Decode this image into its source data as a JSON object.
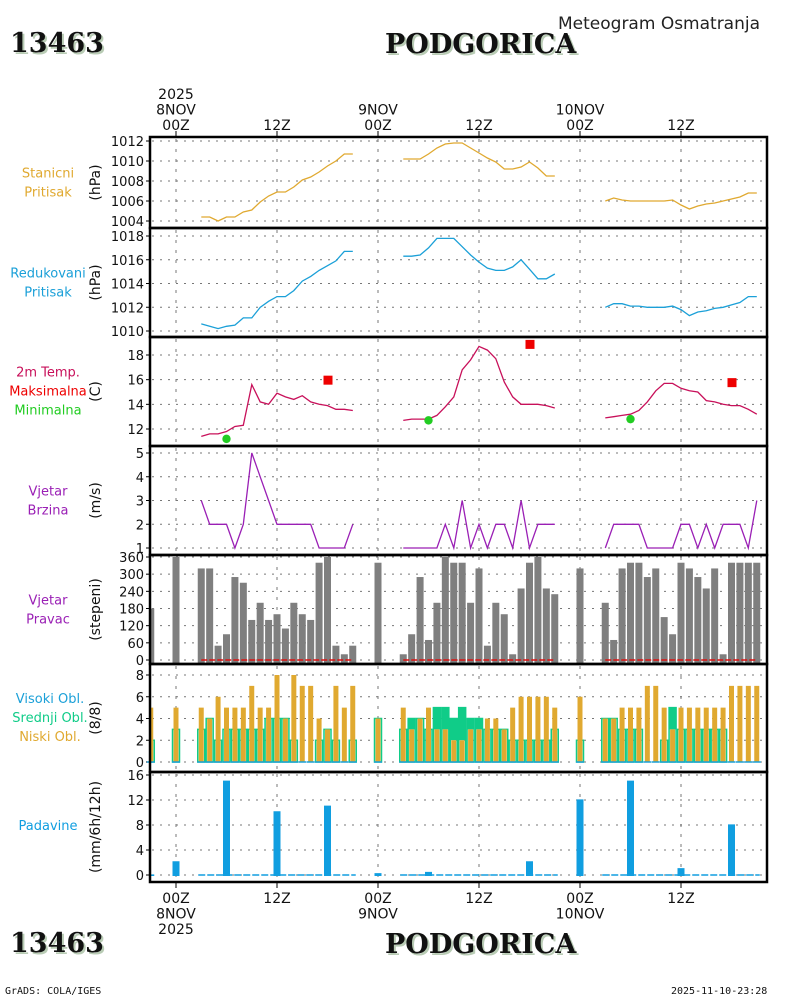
{
  "header": {
    "station_id": "13463",
    "station_name": "PODGORICA",
    "subtitle": "Meteogram Osmatranja"
  },
  "footer": {
    "station_id": "13463",
    "station_name": "PODGORICA",
    "credit": "GrADS: COLA/IGES",
    "timestamp": "2025-11-10-23:28"
  },
  "top_axis": [
    {
      "lines": [
        "2025",
        "8NOV",
        "00Z"
      ],
      "hour": 0
    },
    {
      "lines": [
        "12Z"
      ],
      "hour": 12
    },
    {
      "lines": [
        "9NOV",
        "00Z"
      ],
      "hour": 24
    },
    {
      "lines": [
        "12Z"
      ],
      "hour": 36
    },
    {
      "lines": [
        "10NOV",
        "00Z"
      ],
      "hour": 48
    },
    {
      "lines": [
        "12Z"
      ],
      "hour": 60
    }
  ],
  "bottom_axis": [
    {
      "lines": [
        "00Z",
        "8NOV",
        "2025"
      ],
      "hour": 0
    },
    {
      "lines": [
        "12Z"
      ],
      "hour": 12
    },
    {
      "lines": [
        "00Z",
        "9NOV"
      ],
      "hour": 24
    },
    {
      "lines": [
        "12Z"
      ],
      "hour": 36
    },
    {
      "lines": [
        "00Z",
        "10NOV"
      ],
      "hour": 48
    },
    {
      "lines": [
        "12Z"
      ],
      "hour": 60
    }
  ],
  "colors": {
    "station_pressure": "#e0a930",
    "reduced_pressure": "#1ba0d8",
    "temperature": "#c8105a",
    "tmax": "#ee0000",
    "tmin": "#22cc22",
    "wind_speed": "#9a1fb5",
    "wind_dir": "#7f7f7f",
    "calm_line": "#dd1111",
    "high_cloud": "#1ba0d8",
    "mid_cloud": "#10cc88",
    "low_cloud": "#e0a930",
    "precip": "#109ee0"
  },
  "chart_data": [
    {
      "type": "line",
      "id": "station_pressure",
      "label_lines": [
        "Stanicni",
        "Pritisak"
      ],
      "ylabel": "(hPa)",
      "ylim": [
        1004,
        1012
      ],
      "yticks": [
        1004,
        1006,
        1008,
        1010,
        1012
      ],
      "x_unit": "hours since 8NOV 00Z",
      "segments": [
        {
          "x": [
            3,
            4,
            5,
            6,
            7,
            8,
            9,
            10,
            11,
            12,
            13,
            14,
            15,
            16,
            17,
            18,
            19,
            20,
            21
          ],
          "y": [
            1004.4,
            1004.4,
            1004.0,
            1004.4,
            1004.4,
            1004.9,
            1005.1,
            1005.9,
            1006.5,
            1006.9,
            1006.9,
            1007.4,
            1008.1,
            1008.4,
            1008.9,
            1009.5,
            1010.0,
            1010.7,
            1010.7
          ]
        },
        {
          "x": [
            27,
            28,
            29,
            30,
            31,
            32,
            33,
            34,
            35,
            36,
            37,
            38,
            39,
            40,
            41,
            42,
            43,
            44,
            45
          ],
          "y": [
            1010.2,
            1010.2,
            1010.2,
            1010.7,
            1011.3,
            1011.7,
            1011.8,
            1011.8,
            1011.3,
            1010.8,
            1010.3,
            1009.9,
            1009.2,
            1009.2,
            1009.4,
            1009.9,
            1009.3,
            1008.5,
            1008.5
          ]
        },
        {
          "x": [
            51,
            52,
            53,
            54,
            55,
            56,
            57,
            58,
            59,
            60,
            61,
            62,
            63,
            64,
            65,
            66,
            67,
            68,
            69
          ],
          "y": [
            1006.0,
            1006.3,
            1006.1,
            1006.0,
            1006.0,
            1006.0,
            1006.0,
            1006.0,
            1006.1,
            1005.6,
            1005.2,
            1005.5,
            1005.7,
            1005.8,
            1006.0,
            1006.2,
            1006.4,
            1006.8,
            1006.8
          ]
        }
      ]
    },
    {
      "type": "line",
      "id": "reduced_pressure",
      "label_lines": [
        "Redukovani",
        "Pritisak"
      ],
      "ylabel": "(hPa)",
      "ylim": [
        1009.5,
        1018
      ],
      "yticks": [
        1010,
        1012,
        1014,
        1016,
        1018
      ],
      "segments": [
        {
          "x": [
            3,
            4,
            5,
            6,
            7,
            8,
            9,
            10,
            11,
            12,
            13,
            14,
            15,
            16,
            17,
            18,
            19,
            20,
            21
          ],
          "y": [
            1010.6,
            1010.4,
            1010.2,
            1010.4,
            1010.5,
            1011.1,
            1011.1,
            1012.0,
            1012.5,
            1012.9,
            1012.9,
            1013.4,
            1014.2,
            1014.6,
            1015.1,
            1015.5,
            1015.9,
            1016.7,
            1016.7
          ]
        },
        {
          "x": [
            27,
            28,
            29,
            30,
            31,
            32,
            33,
            34,
            35,
            36,
            37,
            38,
            39,
            40,
            41,
            42,
            43,
            44,
            45
          ],
          "y": [
            1016.3,
            1016.3,
            1016.4,
            1017.0,
            1017.8,
            1017.8,
            1017.8,
            1017.1,
            1016.4,
            1015.8,
            1015.3,
            1015.1,
            1015.1,
            1015.4,
            1016.0,
            1015.2,
            1014.4,
            1014.4,
            1014.8
          ]
        },
        {
          "x": [
            51,
            52,
            53,
            54,
            55,
            56,
            57,
            58,
            59,
            60,
            61,
            62,
            63,
            64,
            65,
            66,
            67,
            68,
            69
          ],
          "y": [
            1012.0,
            1012.3,
            1012.3,
            1012.1,
            1012.1,
            1012.0,
            1012.0,
            1012.0,
            1012.1,
            1011.8,
            1011.3,
            1011.6,
            1011.7,
            1011.9,
            1012.0,
            1012.2,
            1012.4,
            1012.9,
            1012.9
          ]
        }
      ]
    },
    {
      "type": "line",
      "id": "temperature",
      "label_lines": [
        "2m Temp.",
        "Maksimalna",
        "Minimalna"
      ],
      "ylabel": "(C)",
      "ylim": [
        11.3,
        19.5
      ],
      "yticks": [
        12,
        14,
        16,
        18
      ],
      "segments": [
        {
          "x": [
            3,
            4,
            5,
            6,
            7,
            8,
            9,
            10,
            11,
            12,
            13,
            14,
            15,
            16,
            17,
            18,
            19,
            20,
            21
          ],
          "y": [
            11.4,
            11.6,
            11.6,
            11.8,
            12.2,
            12.3,
            15.6,
            14.2,
            14.0,
            14.9,
            14.6,
            14.4,
            14.7,
            14.2,
            14.0,
            13.9,
            13.6,
            13.6,
            13.5
          ]
        },
        {
          "x": [
            27,
            28,
            29,
            30,
            31,
            32,
            33,
            34,
            35,
            36,
            37,
            38,
            39,
            40,
            41,
            42,
            43,
            44,
            45
          ],
          "y": [
            12.7,
            12.8,
            12.8,
            12.8,
            13.1,
            13.8,
            14.6,
            16.8,
            17.6,
            18.7,
            18.4,
            17.7,
            15.8,
            14.6,
            14.0,
            14.0,
            14.0,
            13.9,
            13.7
          ]
        },
        {
          "x": [
            51,
            52,
            53,
            54,
            55,
            56,
            57,
            58,
            59,
            60,
            61,
            62,
            63,
            64,
            65,
            66,
            67,
            68,
            69
          ],
          "y": [
            12.9,
            13.0,
            13.1,
            13.2,
            13.5,
            14.2,
            15.1,
            15.7,
            15.7,
            15.3,
            15.1,
            15.0,
            14.3,
            14.2,
            14.0,
            13.9,
            13.9,
            13.6,
            13.2
          ]
        }
      ],
      "tmax": [
        {
          "x": 18,
          "y": 16.0
        },
        {
          "x": 42,
          "y": 18.9
        },
        {
          "x": 66,
          "y": 15.8
        }
      ],
      "tmin": [
        {
          "x": 6,
          "y": 11.2
        },
        {
          "x": 30,
          "y": 12.7
        },
        {
          "x": 54,
          "y": 12.8
        }
      ]
    },
    {
      "type": "line",
      "id": "wind_speed",
      "label_lines": [
        "Vjetar",
        "Brzina"
      ],
      "ylabel": "(m/s)",
      "ylim": [
        0.9,
        5.3
      ],
      "yticks": [
        1,
        2,
        3,
        4,
        5
      ],
      "segments": [
        {
          "x": [
            3,
            4,
            5,
            6,
            7,
            8,
            9,
            10,
            11,
            12,
            13,
            14,
            15,
            16,
            17,
            18,
            19,
            20,
            21
          ],
          "y": [
            3,
            2,
            2,
            2,
            1,
            2,
            5,
            4,
            3,
            2,
            2,
            2,
            2,
            2,
            1,
            1,
            1,
            1,
            2
          ]
        },
        {
          "x": [
            27,
            28,
            29,
            30,
            31,
            32,
            33,
            34,
            35,
            36,
            37,
            38,
            39,
            40,
            41,
            42,
            43,
            44,
            45
          ],
          "y": [
            1,
            1,
            1,
            1,
            1,
            2,
            1,
            3,
            1,
            2,
            1,
            2,
            2,
            1,
            3,
            1,
            2,
            2,
            2
          ]
        },
        {
          "x": [
            51,
            52,
            53,
            54,
            55,
            56,
            57,
            58,
            59,
            60,
            61,
            62,
            63,
            64,
            65,
            66,
            67,
            68,
            69
          ],
          "y": [
            1,
            2,
            2,
            2,
            2,
            1,
            1,
            1,
            1,
            2,
            2,
            1,
            2,
            1,
            2,
            2,
            2,
            1,
            3
          ]
        }
      ]
    },
    {
      "type": "bar",
      "id": "wind_direction",
      "label_lines": [
        "Vjetar",
        "Pravac"
      ],
      "ylabel": "(stepeni)",
      "ylim": [
        0,
        360
      ],
      "yticks": [
        0,
        60,
        120,
        180,
        240,
        300,
        360
      ],
      "x": [
        -3,
        0,
        3,
        4,
        5,
        6,
        7,
        8,
        9,
        10,
        11,
        12,
        13,
        14,
        15,
        16,
        17,
        18,
        19,
        20,
        21,
        24,
        27,
        28,
        29,
        30,
        31,
        32,
        33,
        34,
        35,
        36,
        37,
        38,
        39,
        40,
        41,
        42,
        43,
        44,
        45,
        48,
        51,
        52,
        53,
        54,
        55,
        56,
        57,
        58,
        59,
        60,
        61,
        62,
        63,
        64,
        65,
        66,
        67,
        68,
        69
      ],
      "values": [
        180,
        360,
        320,
        320,
        50,
        90,
        290,
        270,
        140,
        200,
        140,
        160,
        110,
        200,
        160,
        140,
        340,
        360,
        50,
        20,
        50,
        340,
        20,
        90,
        290,
        70,
        200,
        360,
        340,
        340,
        200,
        320,
        50,
        200,
        160,
        20,
        250,
        340,
        360,
        250,
        230,
        320,
        200,
        70,
        320,
        340,
        340,
        290,
        320,
        150,
        90,
        340,
        320,
        290,
        250,
        320,
        20,
        340,
        340,
        340,
        340
      ],
      "calm_ranges": [
        [
          3,
          21
        ],
        [
          27,
          45
        ],
        [
          51,
          69
        ]
      ]
    },
    {
      "type": "bar",
      "id": "cloud_cover",
      "label_lines": [
        "Visoki Obl.",
        "Srednji Obl.",
        "Niski Obl."
      ],
      "ylabel": "(8/8)",
      "ylim": [
        0,
        8.3
      ],
      "yticks": [
        0,
        2,
        4,
        6,
        8
      ],
      "x": [
        -3,
        0,
        3,
        4,
        5,
        6,
        7,
        8,
        9,
        10,
        11,
        12,
        13,
        14,
        15,
        16,
        17,
        18,
        19,
        20,
        21,
        24,
        27,
        28,
        29,
        30,
        31,
        32,
        33,
        34,
        35,
        36,
        37,
        38,
        39,
        40,
        41,
        42,
        43,
        44,
        45,
        48,
        51,
        52,
        53,
        54,
        55,
        56,
        57,
        58,
        59,
        60,
        61,
        62,
        63,
        64,
        65,
        66,
        67,
        68,
        69
      ],
      "low": [
        5,
        5,
        5,
        4,
        6,
        5,
        5,
        5,
        7,
        5,
        5,
        8,
        4,
        8,
        7,
        7,
        4,
        3,
        7,
        5,
        7,
        4,
        5,
        3,
        4,
        5,
        3,
        3,
        2,
        2,
        3,
        3,
        4,
        4,
        3,
        5,
        6,
        6,
        6,
        6,
        5,
        6,
        4,
        4,
        5,
        5,
        5,
        7,
        7,
        5,
        3,
        5,
        5,
        5,
        5,
        5,
        5,
        7,
        7,
        7,
        7
      ],
      "mid": [
        2,
        3,
        3,
        4,
        2,
        3,
        3,
        3,
        3,
        3,
        4,
        4,
        4,
        2,
        0,
        0,
        2,
        3,
        2,
        0,
        2,
        4,
        3,
        4,
        4,
        3,
        5,
        5,
        4,
        5,
        4,
        4,
        3,
        3,
        3,
        2,
        2,
        2,
        2,
        2,
        3,
        2,
        4,
        4,
        3,
        3,
        3,
        0,
        0,
        2,
        5,
        3,
        3,
        3,
        3,
        3,
        3,
        0,
        0,
        0,
        0
      ],
      "high": [
        0,
        0,
        0,
        0,
        0,
        0,
        0,
        0,
        0,
        0,
        0,
        0,
        0,
        0,
        0,
        0,
        0,
        0,
        0,
        0,
        0,
        0,
        0,
        0,
        0,
        0,
        0,
        0,
        0,
        0,
        0,
        0,
        0,
        0,
        0,
        0,
        0,
        0,
        0,
        0,
        0,
        0,
        0,
        0,
        0,
        0,
        0,
        0,
        0,
        0,
        0,
        0,
        0,
        0,
        0,
        0,
        0,
        0,
        0,
        0,
        0
      ]
    },
    {
      "type": "bar",
      "id": "precipitation",
      "label_lines": [
        "Padavine"
      ],
      "ylabel": "(mm/6h/12h)",
      "ylim": [
        -0.4,
        16
      ],
      "yticks": [
        0,
        4,
        8,
        12,
        16
      ],
      "x": [
        -3,
        0,
        6,
        12,
        18,
        24,
        30,
        42,
        48,
        54,
        60,
        66
      ],
      "values": [
        0.1,
        2.2,
        15.1,
        10.2,
        11.1,
        0.3,
        0.5,
        2.2,
        12.1,
        15.1,
        1.1,
        8.1
      ],
      "trace_ranges": [
        [
          3,
          21
        ],
        [
          27,
          45
        ],
        [
          51,
          69
        ]
      ]
    }
  ]
}
